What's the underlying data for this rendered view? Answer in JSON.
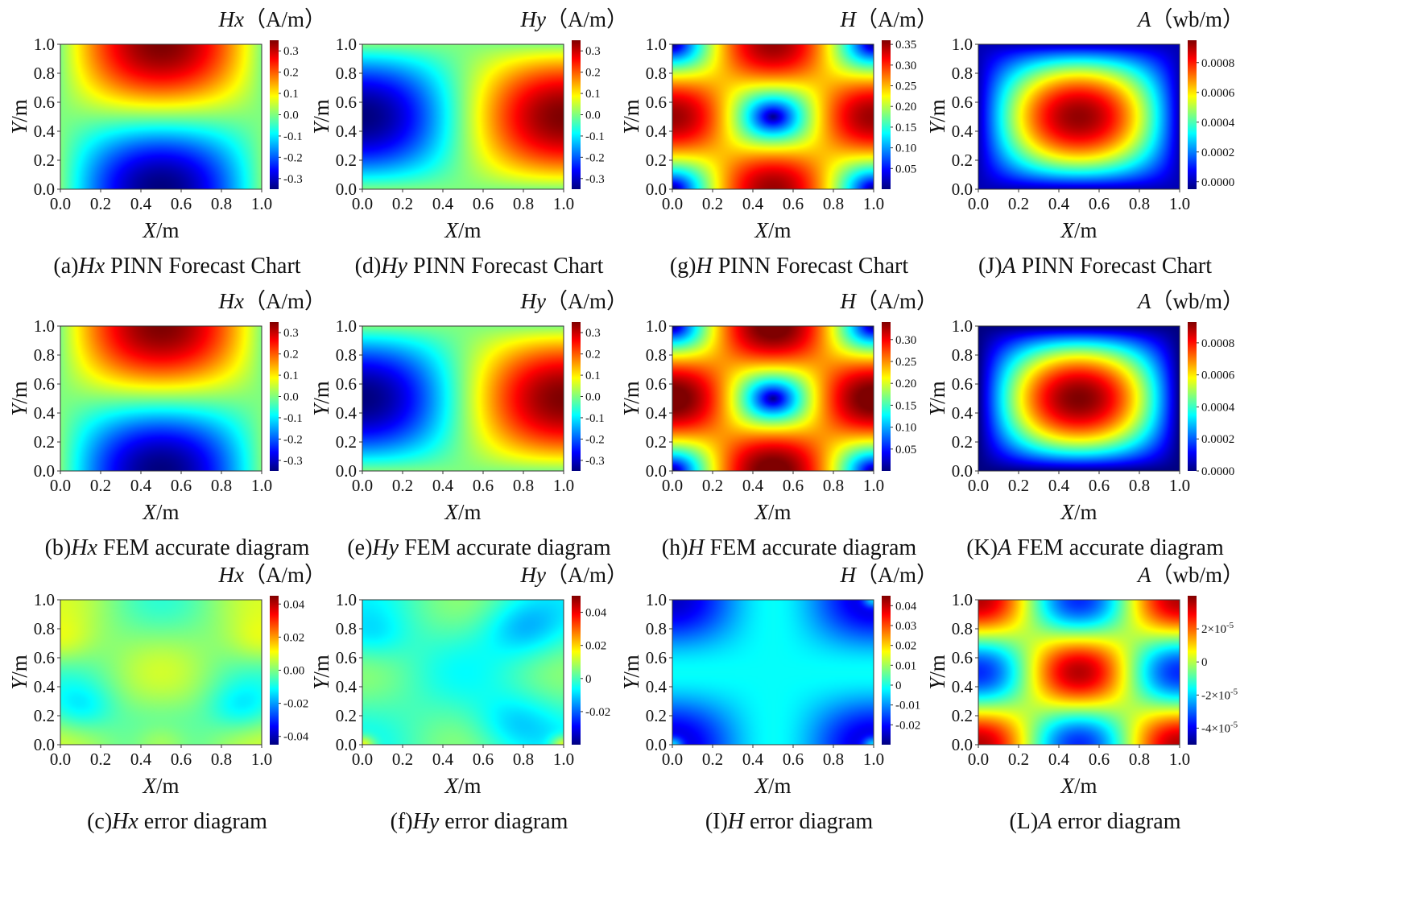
{
  "figure": {
    "colormap": "jet",
    "colormap_stops": [
      "#00007f",
      "#0000ff",
      "#007fff",
      "#00ffff",
      "#7fff7f",
      "#ffff00",
      "#ff7f00",
      "#ff0000",
      "#7f0000"
    ]
  },
  "chart_data": [
    {
      "id": "a",
      "type": "heatmap",
      "field": "Hx",
      "quantity": "Hx",
      "unit": "（A/m）",
      "xlabel": "X/m",
      "ylabel": "Y/m",
      "xlim": [
        0,
        1
      ],
      "ylim": [
        0,
        1
      ],
      "xticks": [
        "0.0",
        "0.2",
        "0.4",
        "0.6",
        "0.8",
        "1.0"
      ],
      "yticks": [
        "0.0",
        "0.2",
        "0.4",
        "0.6",
        "0.8",
        "1.0"
      ],
      "colorbar": {
        "min": -0.35,
        "max": 0.35,
        "ticks": [
          {
            "v": 0.3,
            "label": "0.3"
          },
          {
            "v": 0.2,
            "label": "0.2"
          },
          {
            "v": 0.1,
            "label": "0.1"
          },
          {
            "v": 0.0,
            "label": "0.0"
          },
          {
            "v": -0.1,
            "label": "-0.1"
          },
          {
            "v": -0.2,
            "label": "-0.2"
          },
          {
            "v": -0.3,
            "label": "-0.3"
          }
        ]
      },
      "caption_prefix": "(a)",
      "caption_quantity": "Hx",
      "caption_suffix": " PINN Forecast Chart"
    },
    {
      "id": "d",
      "type": "heatmap",
      "field": "Hy",
      "quantity": "Hy",
      "unit": "（A/m）",
      "xlabel": "X/m",
      "ylabel": "Y/m",
      "xlim": [
        0,
        1
      ],
      "ylim": [
        0,
        1
      ],
      "xticks": [
        "0.0",
        "0.2",
        "0.4",
        "0.6",
        "0.8",
        "1.0"
      ],
      "yticks": [
        "0.0",
        "0.2",
        "0.4",
        "0.6",
        "0.8",
        "1.0"
      ],
      "colorbar": {
        "min": -0.35,
        "max": 0.35,
        "ticks": [
          {
            "v": 0.3,
            "label": "0.3"
          },
          {
            "v": 0.2,
            "label": "0.2"
          },
          {
            "v": 0.1,
            "label": "0.1"
          },
          {
            "v": 0.0,
            "label": "0.0"
          },
          {
            "v": -0.1,
            "label": "-0.1"
          },
          {
            "v": -0.2,
            "label": "-0.2"
          },
          {
            "v": -0.3,
            "label": "-0.3"
          }
        ]
      },
      "caption_prefix": "(d)",
      "caption_quantity": "Hy",
      "caption_suffix": " PINN Forecast Chart"
    },
    {
      "id": "g",
      "type": "heatmap",
      "field": "H",
      "quantity": "H",
      "unit": "（A/m）",
      "xlabel": "X/m",
      "ylabel": "Y/m",
      "xlim": [
        0,
        1
      ],
      "ylim": [
        0,
        1
      ],
      "xticks": [
        "0.0",
        "0.2",
        "0.4",
        "0.6",
        "0.8",
        "1.0"
      ],
      "yticks": [
        "0.0",
        "0.2",
        "0.4",
        "0.6",
        "0.8",
        "1.0"
      ],
      "colorbar": {
        "min": 0.0,
        "max": 0.36,
        "ticks": [
          {
            "v": 0.35,
            "label": "0.35"
          },
          {
            "v": 0.3,
            "label": "0.30"
          },
          {
            "v": 0.25,
            "label": "0.25"
          },
          {
            "v": 0.2,
            "label": "0.20"
          },
          {
            "v": 0.15,
            "label": "0.15"
          },
          {
            "v": 0.1,
            "label": "0.10"
          },
          {
            "v": 0.05,
            "label": "0.05"
          }
        ]
      },
      "caption_prefix": "(g)",
      "caption_quantity": "H",
      "caption_suffix": " PINN Forecast Chart"
    },
    {
      "id": "J",
      "type": "heatmap",
      "field": "A",
      "quantity": "A",
      "unit": "（wb/m）",
      "xlabel": "X/m",
      "ylabel": "Y/m",
      "xlim": [
        0,
        1
      ],
      "ylim": [
        0,
        1
      ],
      "xticks": [
        "0.0",
        "0.2",
        "0.4",
        "0.6",
        "0.8",
        "1.0"
      ],
      "yticks": [
        "0.0",
        "0.2",
        "0.4",
        "0.6",
        "0.8",
        "1.0"
      ],
      "colorbar": {
        "min": -5e-05,
        "max": 0.00095,
        "ticks": [
          {
            "v": 0.0008,
            "label": "0.0008"
          },
          {
            "v": 0.0006,
            "label": "0.0006"
          },
          {
            "v": 0.0004,
            "label": "0.0004"
          },
          {
            "v": 0.0002,
            "label": "0.0002"
          },
          {
            "v": 0.0,
            "label": "0.0000"
          }
        ]
      },
      "caption_prefix": "(J)",
      "caption_quantity": "A",
      "caption_suffix": " PINN Forecast Chart"
    },
    {
      "id": "b",
      "type": "heatmap",
      "field": "Hx",
      "quantity": "Hx",
      "unit": "（A/m）",
      "xlabel": "X/m",
      "ylabel": "Y/m",
      "xlim": [
        0,
        1
      ],
      "ylim": [
        0,
        1
      ],
      "xticks": [
        "0.0",
        "0.2",
        "0.4",
        "0.6",
        "0.8",
        "1.0"
      ],
      "yticks": [
        "0.0",
        "0.2",
        "0.4",
        "0.6",
        "0.8",
        "1.0"
      ],
      "colorbar": {
        "min": -0.35,
        "max": 0.35,
        "ticks": [
          {
            "v": 0.3,
            "label": "0.3"
          },
          {
            "v": 0.2,
            "label": "0.2"
          },
          {
            "v": 0.1,
            "label": "0.1"
          },
          {
            "v": 0.0,
            "label": "0.0"
          },
          {
            "v": -0.1,
            "label": "-0.1"
          },
          {
            "v": -0.2,
            "label": "-0.2"
          },
          {
            "v": -0.3,
            "label": "-0.3"
          }
        ]
      },
      "caption_prefix": "(b)",
      "caption_quantity": "Hx",
      "caption_suffix": " FEM accurate diagram"
    },
    {
      "id": "e",
      "type": "heatmap",
      "field": "Hy",
      "quantity": "Hy",
      "unit": "（A/m）",
      "xlabel": "X/m",
      "ylabel": "Y/m",
      "xlim": [
        0,
        1
      ],
      "ylim": [
        0,
        1
      ],
      "xticks": [
        "0.0",
        "0.2",
        "0.4",
        "0.6",
        "0.8",
        "1.0"
      ],
      "yticks": [
        "0.0",
        "0.2",
        "0.4",
        "0.6",
        "0.8",
        "1.0"
      ],
      "colorbar": {
        "min": -0.35,
        "max": 0.35,
        "ticks": [
          {
            "v": 0.3,
            "label": "0.3"
          },
          {
            "v": 0.2,
            "label": "0.2"
          },
          {
            "v": 0.1,
            "label": "0.1"
          },
          {
            "v": 0.0,
            "label": "0.0"
          },
          {
            "v": -0.1,
            "label": "-0.1"
          },
          {
            "v": -0.2,
            "label": "-0.2"
          },
          {
            "v": -0.3,
            "label": "-0.3"
          }
        ]
      },
      "caption_prefix": "(e)",
      "caption_quantity": "Hy",
      "caption_suffix": " FEM accurate diagram"
    },
    {
      "id": "h",
      "type": "heatmap",
      "field": "H",
      "quantity": "H",
      "unit": "（A/m）",
      "xlabel": "X/m",
      "ylabel": "Y/m",
      "xlim": [
        0,
        1
      ],
      "ylim": [
        0,
        1
      ],
      "xticks": [
        "0.0",
        "0.2",
        "0.4",
        "0.6",
        "0.8",
        "1.0"
      ],
      "yticks": [
        "0.0",
        "0.2",
        "0.4",
        "0.6",
        "0.8",
        "1.0"
      ],
      "colorbar": {
        "min": 0.0,
        "max": 0.34,
        "ticks": [
          {
            "v": 0.3,
            "label": "0.30"
          },
          {
            "v": 0.25,
            "label": "0.25"
          },
          {
            "v": 0.2,
            "label": "0.20"
          },
          {
            "v": 0.15,
            "label": "0.15"
          },
          {
            "v": 0.1,
            "label": "0.10"
          },
          {
            "v": 0.05,
            "label": "0.05"
          }
        ]
      },
      "caption_prefix": "(h)",
      "caption_quantity": "H",
      "caption_suffix": " FEM accurate diagram"
    },
    {
      "id": "K",
      "type": "heatmap",
      "field": "A",
      "quantity": "A",
      "unit": "（wb/m）",
      "xlabel": "X/m",
      "ylabel": "Y/m",
      "xlim": [
        0,
        1
      ],
      "ylim": [
        0,
        1
      ],
      "xticks": [
        "0.0",
        "0.2",
        "0.4",
        "0.6",
        "0.8",
        "1.0"
      ],
      "yticks": [
        "0.0",
        "0.2",
        "0.4",
        "0.6",
        "0.8",
        "1.0"
      ],
      "colorbar": {
        "min": 0.0,
        "max": 0.00093,
        "ticks": [
          {
            "v": 0.0008,
            "label": "0.0008"
          },
          {
            "v": 0.0006,
            "label": "0.0006"
          },
          {
            "v": 0.0004,
            "label": "0.0004"
          },
          {
            "v": 0.0002,
            "label": "0.0002"
          },
          {
            "v": 0.0,
            "label": "0.0000"
          }
        ]
      },
      "caption_prefix": "(K)",
      "caption_quantity": "A",
      "caption_suffix": " FEM accurate diagram"
    },
    {
      "id": "c",
      "type": "heatmap",
      "field": "errHx",
      "quantity": "Hx",
      "unit": "（A/m）",
      "xlabel": "X/m",
      "ylabel": "Y/m",
      "xlim": [
        0,
        1
      ],
      "ylim": [
        0,
        1
      ],
      "xticks": [
        "0.0",
        "0.2",
        "0.4",
        "0.6",
        "0.8",
        "1.0"
      ],
      "yticks": [
        "0.0",
        "0.2",
        "0.4",
        "0.6",
        "0.8",
        "1.0"
      ],
      "colorbar": {
        "min": -0.045,
        "max": 0.045,
        "ticks": [
          {
            "v": 0.04,
            "label": "0.04"
          },
          {
            "v": 0.02,
            "label": "0.02"
          },
          {
            "v": 0.0,
            "label": "0.00"
          },
          {
            "v": -0.02,
            "label": "-0.02"
          },
          {
            "v": -0.04,
            "label": "-0.04"
          }
        ]
      },
      "caption_prefix": "(c)",
      "caption_quantity": "Hx",
      "caption_suffix": " error diagram"
    },
    {
      "id": "f",
      "type": "heatmap",
      "field": "errHy",
      "quantity": "Hy",
      "unit": "（A/m）",
      "xlabel": "X/m",
      "ylabel": "Y/m",
      "xlim": [
        0,
        1
      ],
      "ylim": [
        0,
        1
      ],
      "xticks": [
        "0.0",
        "0.2",
        "0.4",
        "0.6",
        "0.8",
        "1.0"
      ],
      "yticks": [
        "0.0",
        "0.2",
        "0.4",
        "0.6",
        "0.8",
        "1.0"
      ],
      "colorbar": {
        "min": -0.04,
        "max": 0.05,
        "ticks": [
          {
            "v": 0.04,
            "label": "0.04"
          },
          {
            "v": 0.02,
            "label": "0.02"
          },
          {
            "v": 0.0,
            "label": "0"
          },
          {
            "v": -0.02,
            "label": "-0.02"
          }
        ]
      },
      "caption_prefix": "(f)",
      "caption_quantity": "Hy",
      "caption_suffix": " error diagram"
    },
    {
      "id": "I",
      "type": "heatmap",
      "field": "errH",
      "quantity": "H",
      "unit": "（A/m）",
      "xlabel": "X/m",
      "ylabel": "Y/m",
      "xlim": [
        0,
        1
      ],
      "ylim": [
        0,
        1
      ],
      "xticks": [
        "0.0",
        "0.2",
        "0.4",
        "0.6",
        "0.8",
        "1.0"
      ],
      "yticks": [
        "0.0",
        "0.2",
        "0.4",
        "0.6",
        "0.8",
        "1.0"
      ],
      "colorbar": {
        "min": -0.03,
        "max": 0.045,
        "ticks": [
          {
            "v": 0.04,
            "label": "0.04"
          },
          {
            "v": 0.03,
            "label": "0.03"
          },
          {
            "v": 0.02,
            "label": "0.02"
          },
          {
            "v": 0.01,
            "label": "0.01"
          },
          {
            "v": 0.0,
            "label": "0"
          },
          {
            "v": -0.01,
            "label": "-0.01"
          },
          {
            "v": -0.02,
            "label": "-0.02"
          }
        ]
      },
      "caption_prefix": "(I)",
      "caption_quantity": "H",
      "caption_suffix": " error diagram"
    },
    {
      "id": "L",
      "type": "heatmap",
      "field": "errA",
      "quantity": "A",
      "unit": "（wb/m）",
      "xlabel": "X/m",
      "ylabel": "Y/m",
      "xlim": [
        0,
        1
      ],
      "ylim": [
        0,
        1
      ],
      "xticks": [
        "0.0",
        "0.2",
        "0.4",
        "0.6",
        "0.8",
        "1.0"
      ],
      "yticks": [
        "0.0",
        "0.2",
        "0.4",
        "0.6",
        "0.8",
        "1.0"
      ],
      "colorbar": {
        "min": -5e-05,
        "max": 4e-05,
        "ticks": [
          {
            "v": 2e-05,
            "label": "2×10",
            "exp": "-5"
          },
          {
            "v": 0.0,
            "label": "0"
          },
          {
            "v": -2e-05,
            "label": "-2×10",
            "exp": "-5"
          },
          {
            "v": -4e-05,
            "label": "-4×10",
            "exp": "-5"
          }
        ]
      },
      "caption_prefix": "(L)",
      "caption_quantity": "A",
      "caption_suffix": " error diagram"
    }
  ]
}
